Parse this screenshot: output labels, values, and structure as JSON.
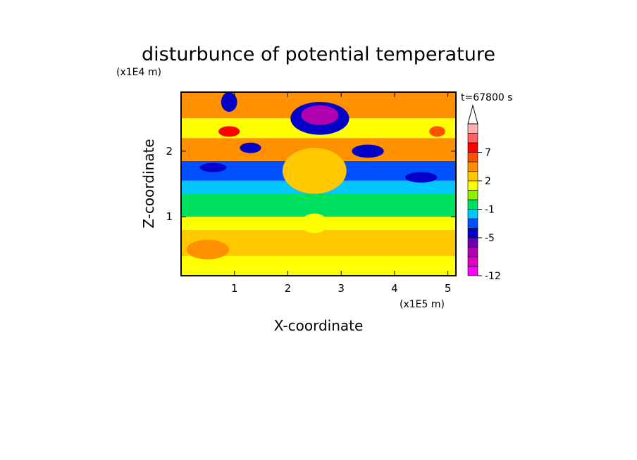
{
  "chart_data": {
    "type": "heatmap",
    "title": "disturbunce of potential temperature",
    "xlabel": "X-coordinate",
    "ylabel": "Z-coordinate",
    "x_unit": "(x1E5 m)",
    "y_unit": "(x1E4 m)",
    "time_label": "t=67800 s",
    "xlim": [
      0,
      5.15
    ],
    "ylim": [
      0.1,
      2.9
    ],
    "x_ticks": [
      1,
      2,
      3,
      4,
      5
    ],
    "y_ticks": [
      1,
      2
    ],
    "colorbar": {
      "tick_labels": [
        "7",
        "2",
        "-1",
        "-5",
        "-12"
      ],
      "tick_values": [
        7,
        2,
        -1,
        -5,
        -12
      ],
      "bins": [
        {
          "lo": -12,
          "hi": -10,
          "color": "#ff00ff"
        },
        {
          "lo": -10,
          "hi": -8,
          "color": "#e000c0"
        },
        {
          "lo": -8,
          "hi": -6,
          "color": "#b000b0"
        },
        {
          "lo": -6,
          "hi": -5,
          "color": "#6a00b0"
        },
        {
          "lo": -5,
          "hi": -4,
          "color": "#0000c8"
        },
        {
          "lo": -4,
          "hi": -2,
          "color": "#0050ff"
        },
        {
          "lo": -2,
          "hi": -1,
          "color": "#00c8ff"
        },
        {
          "lo": -1,
          "hi": 0,
          "color": "#00e060"
        },
        {
          "lo": 0,
          "hi": 1,
          "color": "#90f000"
        },
        {
          "lo": 1,
          "hi": 2,
          "color": "#ffff00"
        },
        {
          "lo": 2,
          "hi": 3,
          "color": "#ffc800"
        },
        {
          "lo": 3,
          "hi": 5,
          "color": "#ff9000"
        },
        {
          "lo": 5,
          "hi": 7,
          "color": "#ff5000"
        },
        {
          "lo": 7,
          "hi": 9,
          "color": "#ff0000"
        },
        {
          "lo": 9,
          "hi": 11,
          "color": "#ff6060"
        },
        {
          "lo": 11,
          "hi": 13,
          "color": "#ffb0b0"
        }
      ]
    },
    "bands": [
      {
        "z_from": 0.1,
        "z_to": 0.2,
        "value": 1.5
      },
      {
        "z_from": 0.2,
        "z_to": 0.4,
        "value": 1.5
      },
      {
        "z_from": 0.4,
        "z_to": 0.8,
        "value": 2.5
      },
      {
        "z_from": 0.8,
        "z_to": 1.0,
        "value": 1.5
      },
      {
        "z_from": 1.0,
        "z_to": 1.35,
        "value": -0.5
      },
      {
        "z_from": 1.35,
        "z_to": 1.55,
        "value": -1.5
      },
      {
        "z_from": 1.55,
        "z_to": 1.85,
        "value": -3
      },
      {
        "z_from": 1.85,
        "z_to": 2.2,
        "value": 3
      },
      {
        "z_from": 2.2,
        "z_to": 2.5,
        "value": 1.5
      },
      {
        "z_from": 2.5,
        "z_to": 2.9,
        "value": 4
      }
    ],
    "features": [
      {
        "x": 2.6,
        "z": 2.5,
        "rx": 0.55,
        "rz": 0.25,
        "value": -4.5
      },
      {
        "x": 2.6,
        "z": 2.55,
        "rx": 0.35,
        "rz": 0.15,
        "value": -7
      },
      {
        "x": 0.9,
        "z": 2.75,
        "rx": 0.15,
        "rz": 0.15,
        "value": -4.5
      },
      {
        "x": 1.3,
        "z": 2.05,
        "rx": 0.2,
        "rz": 0.08,
        "value": -4.5
      },
      {
        "x": 0.6,
        "z": 1.75,
        "rx": 0.25,
        "rz": 0.07,
        "value": -4.5
      },
      {
        "x": 3.5,
        "z": 2.0,
        "rx": 0.3,
        "rz": 0.1,
        "value": -4.5
      },
      {
        "x": 4.5,
        "z": 1.6,
        "rx": 0.3,
        "rz": 0.08,
        "value": -4.5
      },
      {
        "x": 0.9,
        "z": 2.3,
        "rx": 0.2,
        "rz": 0.08,
        "value": 8
      },
      {
        "x": 4.8,
        "z": 2.3,
        "rx": 0.15,
        "rz": 0.08,
        "value": 6
      },
      {
        "x": 2.5,
        "z": 1.7,
        "rx": 0.6,
        "rz": 0.35,
        "value": 2.5
      },
      {
        "x": 2.5,
        "z": 0.9,
        "rx": 0.25,
        "rz": 0.15,
        "value": 1.5
      },
      {
        "x": 0.5,
        "z": 0.5,
        "rx": 0.4,
        "rz": 0.15,
        "value": 4
      }
    ]
  }
}
